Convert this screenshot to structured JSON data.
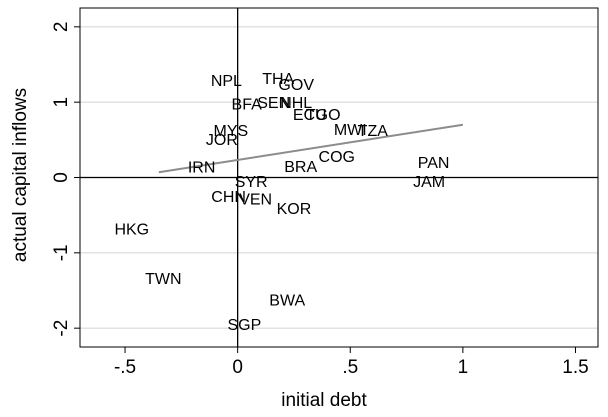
{
  "chart_data": {
    "type": "scatter",
    "title": "",
    "xlabel": "initial debt",
    "ylabel": "actual capital inflows",
    "xlim": [
      -0.7,
      1.6
    ],
    "ylim": [
      -2.25,
      2.25
    ],
    "x_ticks": [
      -0.5,
      0,
      0.5,
      1,
      1.5
    ],
    "x_tick_labels": [
      "-.5",
      "0",
      ".5",
      "1",
      "1.5"
    ],
    "y_ticks": [
      -2,
      -1,
      0,
      1,
      2
    ],
    "y_tick_labels": [
      "-2",
      "-1",
      "0",
      "1",
      "2"
    ],
    "grid": "horizontal",
    "reference_lines": {
      "x": 0,
      "y": 0
    },
    "fit_line": {
      "x": [
        -0.35,
        1.0
      ],
      "y": [
        0.07,
        0.7
      ]
    },
    "points": [
      {
        "label": "NPL",
        "x": -0.05,
        "y": 1.27
      },
      {
        "label": "THA",
        "x": 0.18,
        "y": 1.3
      },
      {
        "label": "GOV",
        "x": 0.26,
        "y": 1.22
      },
      {
        "label": "BFA",
        "x": 0.04,
        "y": 0.96
      },
      {
        "label": "SEN",
        "x": 0.16,
        "y": 0.98
      },
      {
        "label": "NHL",
        "x": 0.26,
        "y": 0.98
      },
      {
        "label": "ECU",
        "x": 0.32,
        "y": 0.82
      },
      {
        "label": "TGO",
        "x": 0.38,
        "y": 0.82
      },
      {
        "label": "MWI",
        "x": 0.5,
        "y": 0.62
      },
      {
        "label": "TZA",
        "x": 0.6,
        "y": 0.61
      },
      {
        "label": "COG",
        "x": 0.44,
        "y": 0.26
      },
      {
        "label": "BRA",
        "x": 0.28,
        "y": 0.13
      },
      {
        "label": "PAN",
        "x": 0.87,
        "y": 0.18
      },
      {
        "label": "JAM",
        "x": 0.85,
        "y": -0.07
      },
      {
        "label": "JOR",
        "x": -0.07,
        "y": 0.49
      },
      {
        "label": "MYS",
        "x": -0.03,
        "y": 0.61
      },
      {
        "label": "IRN",
        "x": -0.16,
        "y": 0.12
      },
      {
        "label": "SYR",
        "x": 0.06,
        "y": -0.07
      },
      {
        "label": "CHN",
        "x": -0.04,
        "y": -0.27
      },
      {
        "label": "VEN",
        "x": 0.08,
        "y": -0.3
      },
      {
        "label": "KOR",
        "x": 0.25,
        "y": -0.43
      },
      {
        "label": "HKG",
        "x": -0.47,
        "y": -0.7
      },
      {
        "label": "TWN",
        "x": -0.33,
        "y": -1.36
      },
      {
        "label": "BWA",
        "x": 0.22,
        "y": -1.64
      },
      {
        "label": "SGP",
        "x": 0.03,
        "y": -1.97
      }
    ]
  }
}
